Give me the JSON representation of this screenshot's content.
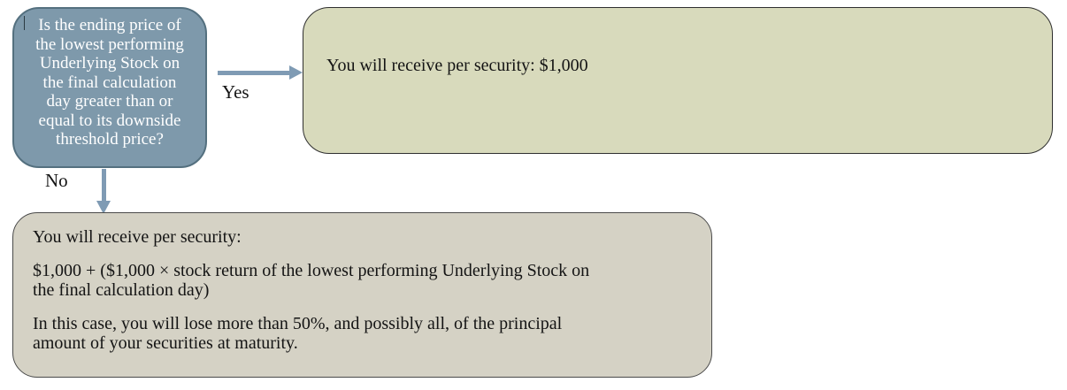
{
  "flowchart": {
    "decision": {
      "text": "Is the ending price of\nthe lowest performing\nUnderlying Stock on\nthe final calculation\nday greater than or\nequal to its downside\nthreshold price?"
    },
    "yes_branch": {
      "label": "Yes",
      "outcome": "You will receive per security: $1,000"
    },
    "no_branch": {
      "label": "No",
      "paragraphs": [
        "You will receive per security:",
        "$1,000 + ($1,000 × stock return of the lowest performing Underlying Stock on\nthe final calculation day)",
        "In this case, you will lose more than 50%, and possibly all, of the principal\namount of your securities at maturity."
      ]
    },
    "colors": {
      "decision_fill": "#7E99AB",
      "decision_border": "#54707F",
      "decision_text": "#FFFFFF",
      "yes_box_fill": "#D8DABC",
      "no_box_fill": "#D5D2C5",
      "outcome_border": "#2F2F2F",
      "arrow": "#7F9BB4",
      "body_text": "#141414",
      "background": "#FFFFFF"
    }
  }
}
